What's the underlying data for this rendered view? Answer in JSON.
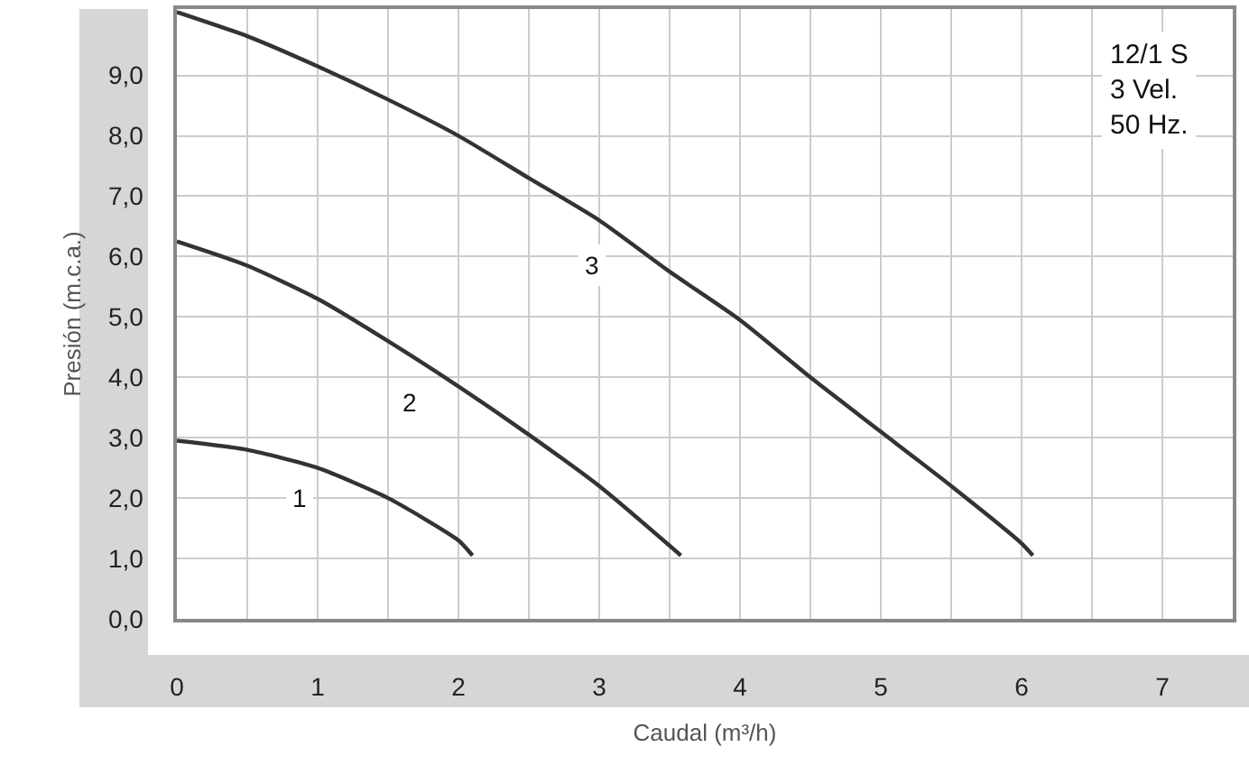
{
  "chart_data": {
    "type": "line",
    "xlabel": "Caudal (m³/h)",
    "ylabel": "Presión (m.c.a.)",
    "xlim": [
      0,
      7.5
    ],
    "xticks": [
      0,
      1,
      2,
      3,
      4,
      5,
      6,
      7
    ],
    "ylim": [
      0,
      10.1
    ],
    "yticks": [
      {
        "value": 0,
        "label": "0,0"
      },
      {
        "value": 1,
        "label": "1,0"
      },
      {
        "value": 2,
        "label": "2,0"
      },
      {
        "value": 3,
        "label": "3,0"
      },
      {
        "value": 4,
        "label": "4,0"
      },
      {
        "value": 5,
        "label": "5,0"
      },
      {
        "value": 6,
        "label": "6,0"
      },
      {
        "value": 7,
        "label": "7,0"
      },
      {
        "value": 8,
        "label": "8,0"
      },
      {
        "value": 9,
        "label": "9,0"
      }
    ],
    "grid": true,
    "marker": "none",
    "line_style": "solid",
    "series": [
      {
        "color": "#333333",
        "x": [
          0,
          0.5,
          1,
          1.5,
          2,
          2.1
        ],
        "values": [
          2.95,
          2.8,
          2.5,
          2.0,
          1.3,
          1.05
        ]
      },
      {
        "color": "#333333",
        "x": [
          0,
          0.5,
          1,
          1.5,
          2,
          2.5,
          3,
          3.58
        ],
        "values": [
          6.25,
          5.85,
          5.3,
          4.6,
          3.85,
          3.05,
          2.2,
          1.05
        ]
      },
      {
        "color": "#333333",
        "x": [
          0,
          0.5,
          1,
          1.5,
          2,
          2.5,
          3,
          3.5,
          4,
          4.5,
          5,
          5.5,
          6,
          6.08
        ],
        "values": [
          10.05,
          9.65,
          9.15,
          8.6,
          8.0,
          7.3,
          6.6,
          5.75,
          4.95,
          4.0,
          3.1,
          2.2,
          1.25,
          1.05
        ]
      }
    ],
    "annotations": [
      {
        "text": "1",
        "x": 0.87,
        "y": 2.0
      },
      {
        "text": "2",
        "x": 1.66,
        "y": 3.6
      },
      {
        "text": "3",
        "x": 2.95,
        "y": 5.85
      },
      "12/1 S\n3 Vel.\n50 Hz."
    ]
  }
}
